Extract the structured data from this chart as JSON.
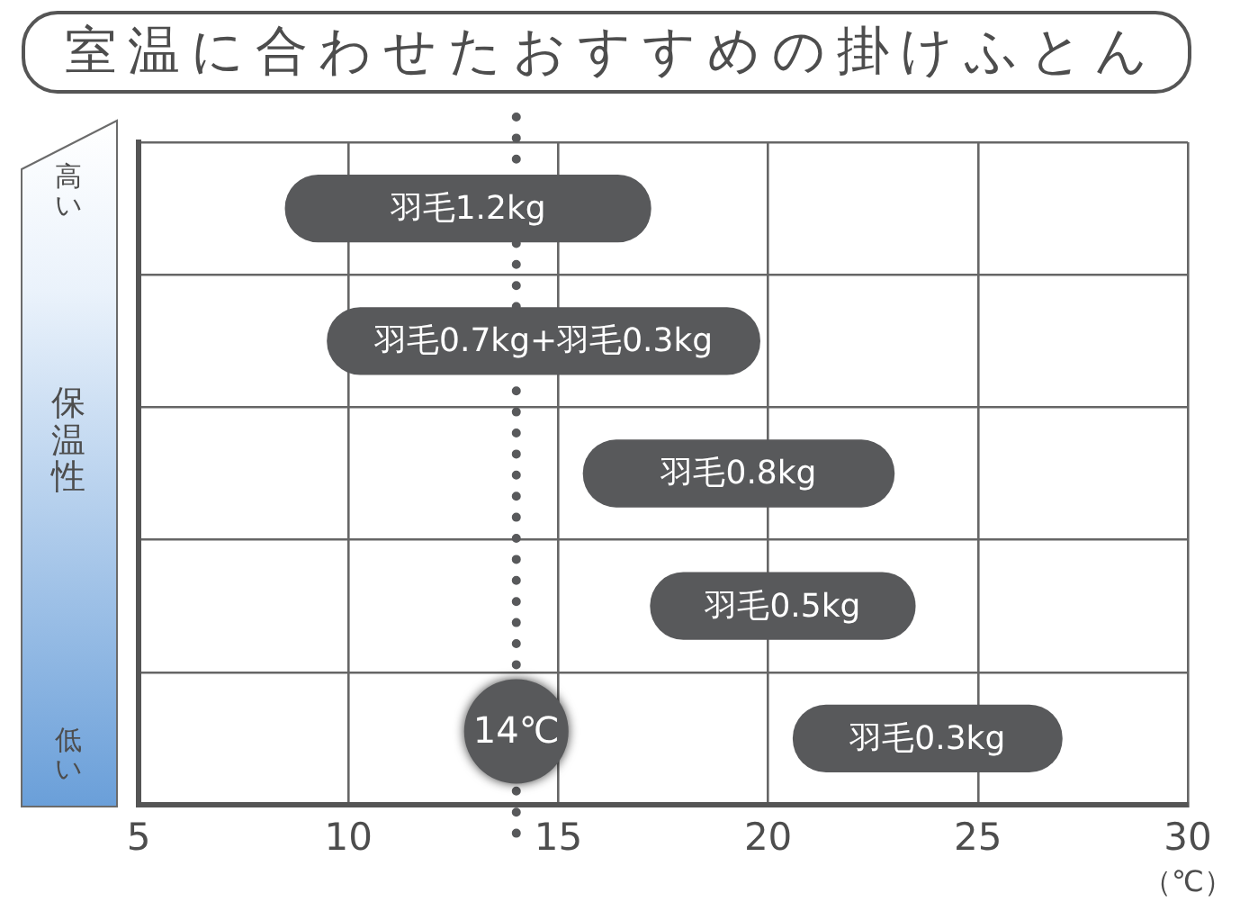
{
  "chart_data": {
    "type": "bar",
    "orientation": "horizontal",
    "title": "室温に合わせたおすすめの掛けふとん",
    "xlabel": "（℃）",
    "ylabel": "保温性",
    "annotations": [
      "高い",
      "低い"
    ],
    "categories": [
      "羽毛1.2kg",
      "羽毛0.7kg+羽毛0.3kg",
      "羽毛0.8kg",
      "羽毛0.5kg",
      "羽毛0.3kg"
    ],
    "base": [
      8.5,
      9.5,
      15.6,
      17.2,
      20.6
    ],
    "values": [
      8.7,
      10.3,
      7.4,
      6.3,
      6.4
    ],
    "color": "#58595b",
    "xlim": [
      5,
      30
    ],
    "xticks": [
      5,
      10,
      15,
      20,
      25,
      30
    ],
    "grid": true,
    "tick_labels": "x",
    "ref_lines": [
      {
        "axis": "x",
        "value": 14,
        "label": "14℃",
        "line_style": "dotted",
        "color": "#58595b"
      }
    ]
  }
}
